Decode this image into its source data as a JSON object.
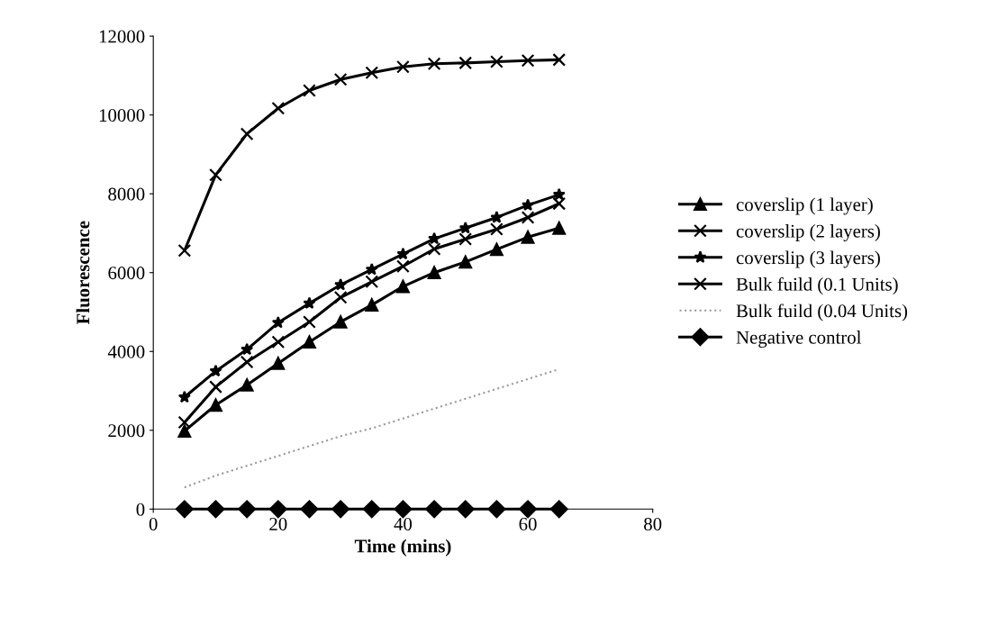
{
  "chart_data": {
    "type": "line",
    "xlabel": "Time (mins)",
    "ylabel": "Fluorescence",
    "x": [
      5,
      10,
      15,
      20,
      25,
      30,
      35,
      40,
      45,
      50,
      55,
      60,
      65
    ],
    "xlim": [
      0,
      80
    ],
    "xticks": [
      0,
      20,
      40,
      60,
      80
    ],
    "ylim": [
      0,
      12000
    ],
    "yticks": [
      0,
      2000,
      4000,
      6000,
      8000,
      10000,
      12000
    ],
    "grid": false,
    "legend": "right",
    "series": [
      {
        "name": "coverslip (1 layer)",
        "color": "#000000",
        "marker": "triangle",
        "values": [
          1980,
          2640,
          3150,
          3700,
          4240,
          4750,
          5180,
          5650,
          6000,
          6270,
          6590,
          6900,
          7130
        ]
      },
      {
        "name": "coverslip (2 layers)",
        "color": "#000000",
        "marker": "cross",
        "values": [
          2200,
          3100,
          3730,
          4240,
          4750,
          5370,
          5770,
          6160,
          6600,
          6850,
          7100,
          7400,
          7750
        ]
      },
      {
        "name": "coverslip (3 layers)",
        "color": "#000000",
        "marker": "star",
        "values": [
          2840,
          3500,
          4050,
          4730,
          5220,
          5690,
          6080,
          6470,
          6860,
          7130,
          7400,
          7710,
          7980
        ]
      },
      {
        "name": "Bulk fuild (0.1 Units)",
        "color": "#000000",
        "marker": "cross",
        "values": [
          6560,
          8480,
          9520,
          10170,
          10620,
          10900,
          11070,
          11220,
          11300,
          11320,
          11350,
          11380,
          11400
        ]
      },
      {
        "name": "Bulk fuild (0.04 Units)",
        "color": "#999999",
        "marker": "none",
        "line_style": "dotted",
        "values": [
          550,
          850,
          1100,
          1350,
          1600,
          1850,
          2050,
          2300,
          2550,
          2800,
          3050,
          3300,
          3550
        ]
      },
      {
        "name": "Negative control",
        "color": "#000000",
        "marker": "diamond",
        "values": [
          0,
          0,
          0,
          0,
          0,
          0,
          0,
          0,
          0,
          0,
          0,
          0,
          0
        ]
      }
    ]
  }
}
